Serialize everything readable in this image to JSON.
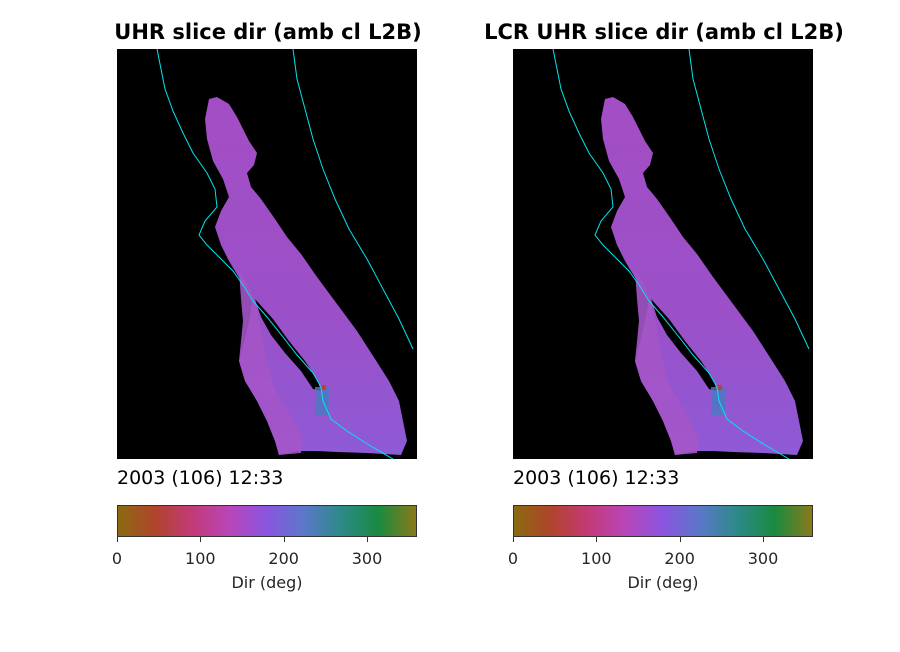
{
  "chart_data": [
    {
      "type": "heatmap",
      "title": "UHR slice dir (amb cl L2B)",
      "timestamp": "2003 (106) 12:33",
      "colorbar": {
        "label": "Dir (deg)",
        "range": [
          0,
          360
        ],
        "ticks": [
          0,
          100,
          200,
          300
        ],
        "colors": [
          "#8a6a10",
          "#b0442c",
          "#c33a78",
          "#b846b8",
          "#8a55e0",
          "#5a78c8",
          "#2c8a88",
          "#1a8a40",
          "#8a7a1a"
        ]
      },
      "dominant_value_deg": 130
    },
    {
      "type": "heatmap",
      "title": "LCR UHR slice dir (amb cl L2B)",
      "timestamp": "2003 (106) 12:33",
      "colorbar": {
        "label": "Dir (deg)",
        "range": [
          0,
          360
        ],
        "ticks": [
          0,
          100,
          200,
          300
        ],
        "colors": [
          "#8a6a10",
          "#b0442c",
          "#c33a78",
          "#b846b8",
          "#8a55e0",
          "#5a78c8",
          "#2c8a88",
          "#1a8a40",
          "#8a7a1a"
        ]
      },
      "dominant_value_deg": 130
    }
  ],
  "colors": {
    "background": "#000000",
    "coastline": "#00e5ee",
    "field": "#9e4cc8"
  }
}
